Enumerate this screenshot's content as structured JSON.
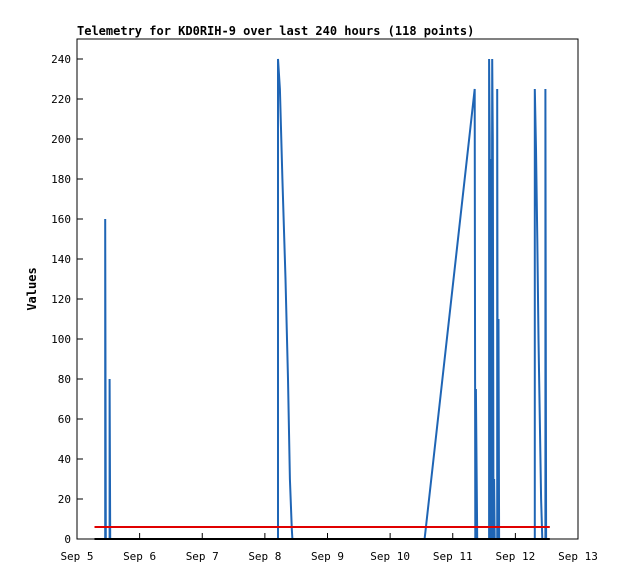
{
  "chart_data": {
    "type": "line",
    "title": "Telemetry for KD0RIH-9 over last 240 hours (118 points)",
    "xlabel": "",
    "ylabel": "Values",
    "xlim": [
      "Sep 5",
      "Sep 13"
    ],
    "ylim": [
      0,
      250
    ],
    "x_ticks": [
      "Sep 5",
      "Sep 6",
      "Sep 7",
      "Sep 8",
      "Sep 9",
      "Sep 10",
      "Sep 11",
      "Sep 12",
      "Sep 13"
    ],
    "y_ticks": [
      0,
      20,
      40,
      60,
      80,
      100,
      120,
      140,
      160,
      180,
      200,
      220,
      240
    ],
    "grid": false,
    "colors": {
      "blue": "#1f65b5",
      "red": "#e00000",
      "black": "#000000"
    },
    "series": [
      {
        "color": "#1f65b5",
        "points": [
          [
            5.28,
            0
          ],
          [
            5.45,
            0
          ],
          [
            5.45,
            160
          ],
          [
            5.46,
            0
          ],
          [
            5.52,
            0
          ],
          [
            5.52,
            80
          ],
          [
            5.53,
            0
          ],
          [
            5.53,
            0
          ],
          [
            8.21,
            0
          ],
          [
            8.21,
            240
          ],
          [
            8.24,
            225
          ],
          [
            8.28,
            180
          ],
          [
            8.33,
            130
          ],
          [
            8.37,
            80
          ],
          [
            8.4,
            30
          ],
          [
            8.43,
            5
          ],
          [
            8.44,
            0
          ],
          [
            10.55,
            0
          ],
          [
            11.35,
            225
          ],
          [
            11.36,
            0
          ],
          [
            11.37,
            75
          ],
          [
            11.39,
            0
          ],
          [
            11.58,
            0
          ],
          [
            11.58,
            240
          ],
          [
            11.59,
            200
          ],
          [
            11.6,
            0
          ],
          [
            11.61,
            190
          ],
          [
            11.62,
            0
          ],
          [
            11.63,
            240
          ],
          [
            11.64,
            200
          ],
          [
            11.65,
            0
          ],
          [
            11.66,
            30
          ],
          [
            11.67,
            0
          ],
          [
            11.71,
            0
          ],
          [
            11.71,
            225
          ],
          [
            11.72,
            0
          ],
          [
            11.73,
            110
          ],
          [
            11.74,
            0
          ],
          [
            11.75,
            0
          ],
          [
            12.31,
            0
          ],
          [
            12.31,
            225
          ],
          [
            12.33,
            195
          ],
          [
            12.35,
            150
          ],
          [
            12.37,
            100
          ],
          [
            12.39,
            60
          ],
          [
            12.41,
            20
          ],
          [
            12.43,
            0
          ],
          [
            12.48,
            0
          ],
          [
            12.48,
            225
          ],
          [
            12.49,
            0
          ]
        ]
      },
      {
        "color": "#e00000",
        "points": [
          [
            5.28,
            6
          ],
          [
            12.55,
            6
          ]
        ]
      },
      {
        "color": "#000000",
        "points": [
          [
            5.28,
            0
          ],
          [
            12.55,
            0
          ]
        ]
      }
    ]
  }
}
